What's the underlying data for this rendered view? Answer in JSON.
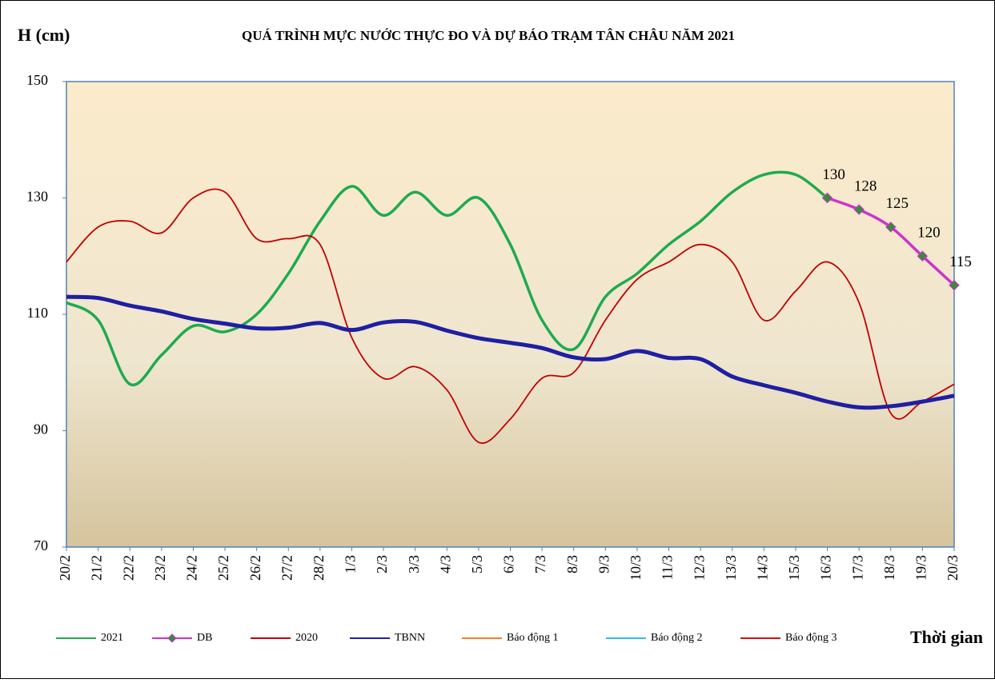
{
  "chart_data": {
    "type": "line",
    "title": "QUÁ TRÌNH MỰC NƯỚC THỰC ĐO VÀ DỰ BÁO TRẠM TÂN CHÂU NĂM 2021",
    "y_label": "H (cm)",
    "x_label": "Thời gian",
    "categories": [
      "20/2",
      "21/2",
      "22/2",
      "23/2",
      "24/2",
      "25/2",
      "26/2",
      "27/2",
      "28/2",
      "1/3",
      "2/3",
      "3/3",
      "4/3",
      "5/3",
      "6/3",
      "7/3",
      "8/3",
      "9/3",
      "10/3",
      "11/3",
      "12/3",
      "13/3",
      "14/3",
      "15/3",
      "16/3",
      "17/3",
      "18/3",
      "19/3",
      "20/3"
    ],
    "series": [
      {
        "name": "2021",
        "color": "#1faa4f",
        "values": [
          112,
          109,
          98,
          103,
          108,
          107,
          110,
          117,
          126,
          132,
          127,
          131,
          127,
          130,
          122,
          109,
          104,
          113,
          117,
          122,
          126,
          131,
          134,
          134,
          130,
          null,
          null,
          null,
          null
        ]
      },
      {
        "name": "DB",
        "color": "#cc33cc",
        "marker_color": "#3a8a3a",
        "values": [
          null,
          null,
          null,
          null,
          null,
          null,
          null,
          null,
          null,
          null,
          null,
          null,
          null,
          null,
          null,
          null,
          null,
          null,
          null,
          null,
          null,
          null,
          null,
          null,
          130,
          128,
          125,
          120,
          115
        ]
      },
      {
        "name": "2020",
        "color": "#c00000",
        "values": [
          119,
          125,
          126,
          124,
          130,
          131,
          123,
          123,
          122,
          106,
          99,
          101,
          97,
          88,
          92,
          99,
          100,
          109,
          116,
          119,
          122,
          119,
          109,
          114,
          119,
          112,
          93,
          95,
          98
        ]
      },
      {
        "name": "TBNN",
        "color": "#1f1fa3",
        "values": [
          113,
          112.8,
          111.5,
          110.5,
          109.2,
          108.4,
          107.6,
          107.7,
          108.5,
          107.3,
          108.6,
          108.7,
          107.2,
          105.9,
          105.1,
          104.2,
          102.6,
          102.3,
          103.7,
          102.5,
          102.3,
          99.3,
          97.8,
          96.5,
          95,
          94,
          94.2,
          95,
          96
        ]
      },
      {
        "name": "Báo động 1",
        "color": "#f08030",
        "values": [
          null,
          null,
          null,
          null,
          null,
          null,
          null,
          null,
          null,
          null,
          null,
          null,
          null,
          null,
          null,
          null,
          null,
          null,
          null,
          null,
          null,
          null,
          null,
          null,
          null,
          null,
          null,
          null,
          null
        ]
      },
      {
        "name": "Báo động 2",
        "color": "#33bbee",
        "values": [
          null,
          null,
          null,
          null,
          null,
          null,
          null,
          null,
          null,
          null,
          null,
          null,
          null,
          null,
          null,
          null,
          null,
          null,
          null,
          null,
          null,
          null,
          null,
          null,
          null,
          null,
          null,
          null,
          null
        ]
      },
      {
        "name": "Báo động 3",
        "color": "#d01010",
        "values": [
          null,
          null,
          null,
          null,
          null,
          null,
          null,
          null,
          null,
          null,
          null,
          null,
          null,
          null,
          null,
          null,
          null,
          null,
          null,
          null,
          null,
          null,
          null,
          null,
          null,
          null,
          null,
          null,
          null
        ]
      }
    ],
    "ylim": [
      70,
      150
    ],
    "yticks": [
      70,
      90,
      110,
      130,
      150
    ],
    "grid": false
  }
}
